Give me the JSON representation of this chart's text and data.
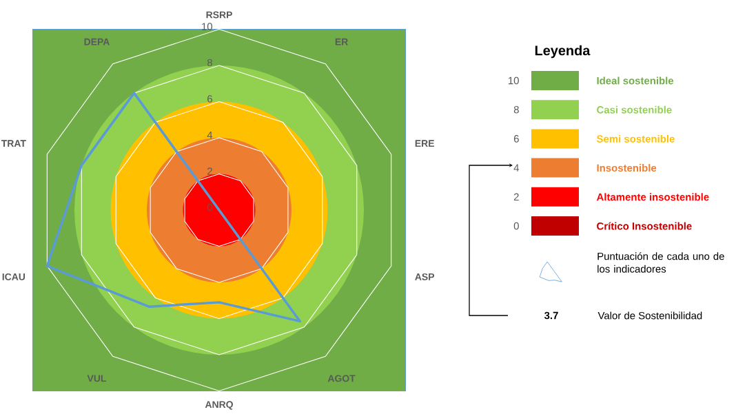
{
  "chart_data": {
    "type": "radar",
    "categories": [
      "RSRP",
      "ER",
      "ERE",
      "ASP",
      "AGOT",
      "ANRQ",
      "VUL",
      "ICAU",
      "TRAT",
      "DEPA"
    ],
    "series": [
      {
        "name": "Puntuación de cada uno de los indicadores",
        "color": "#5b9bd5",
        "values": [
          0,
          0,
          0,
          0,
          7.6,
          5.1,
          6.6,
          10,
          8,
          8
        ]
      }
    ],
    "ylim": [
      0,
      10
    ],
    "yticks": [
      0,
      2,
      4,
      6,
      8,
      10
    ],
    "grid": true,
    "legend": "right",
    "legend_title": "Leyenda",
    "marker": "none",
    "annotations": [
      "10",
      "Ideal sostenible",
      "8",
      "Casi sostenible",
      "6",
      "Semi sostenible",
      "4",
      "Insostenible",
      "2",
      "Altamente insostenible",
      "0",
      "Crítico Insostenible",
      "3.7",
      "Valor de Sostenibilidad"
    ]
  }
}
